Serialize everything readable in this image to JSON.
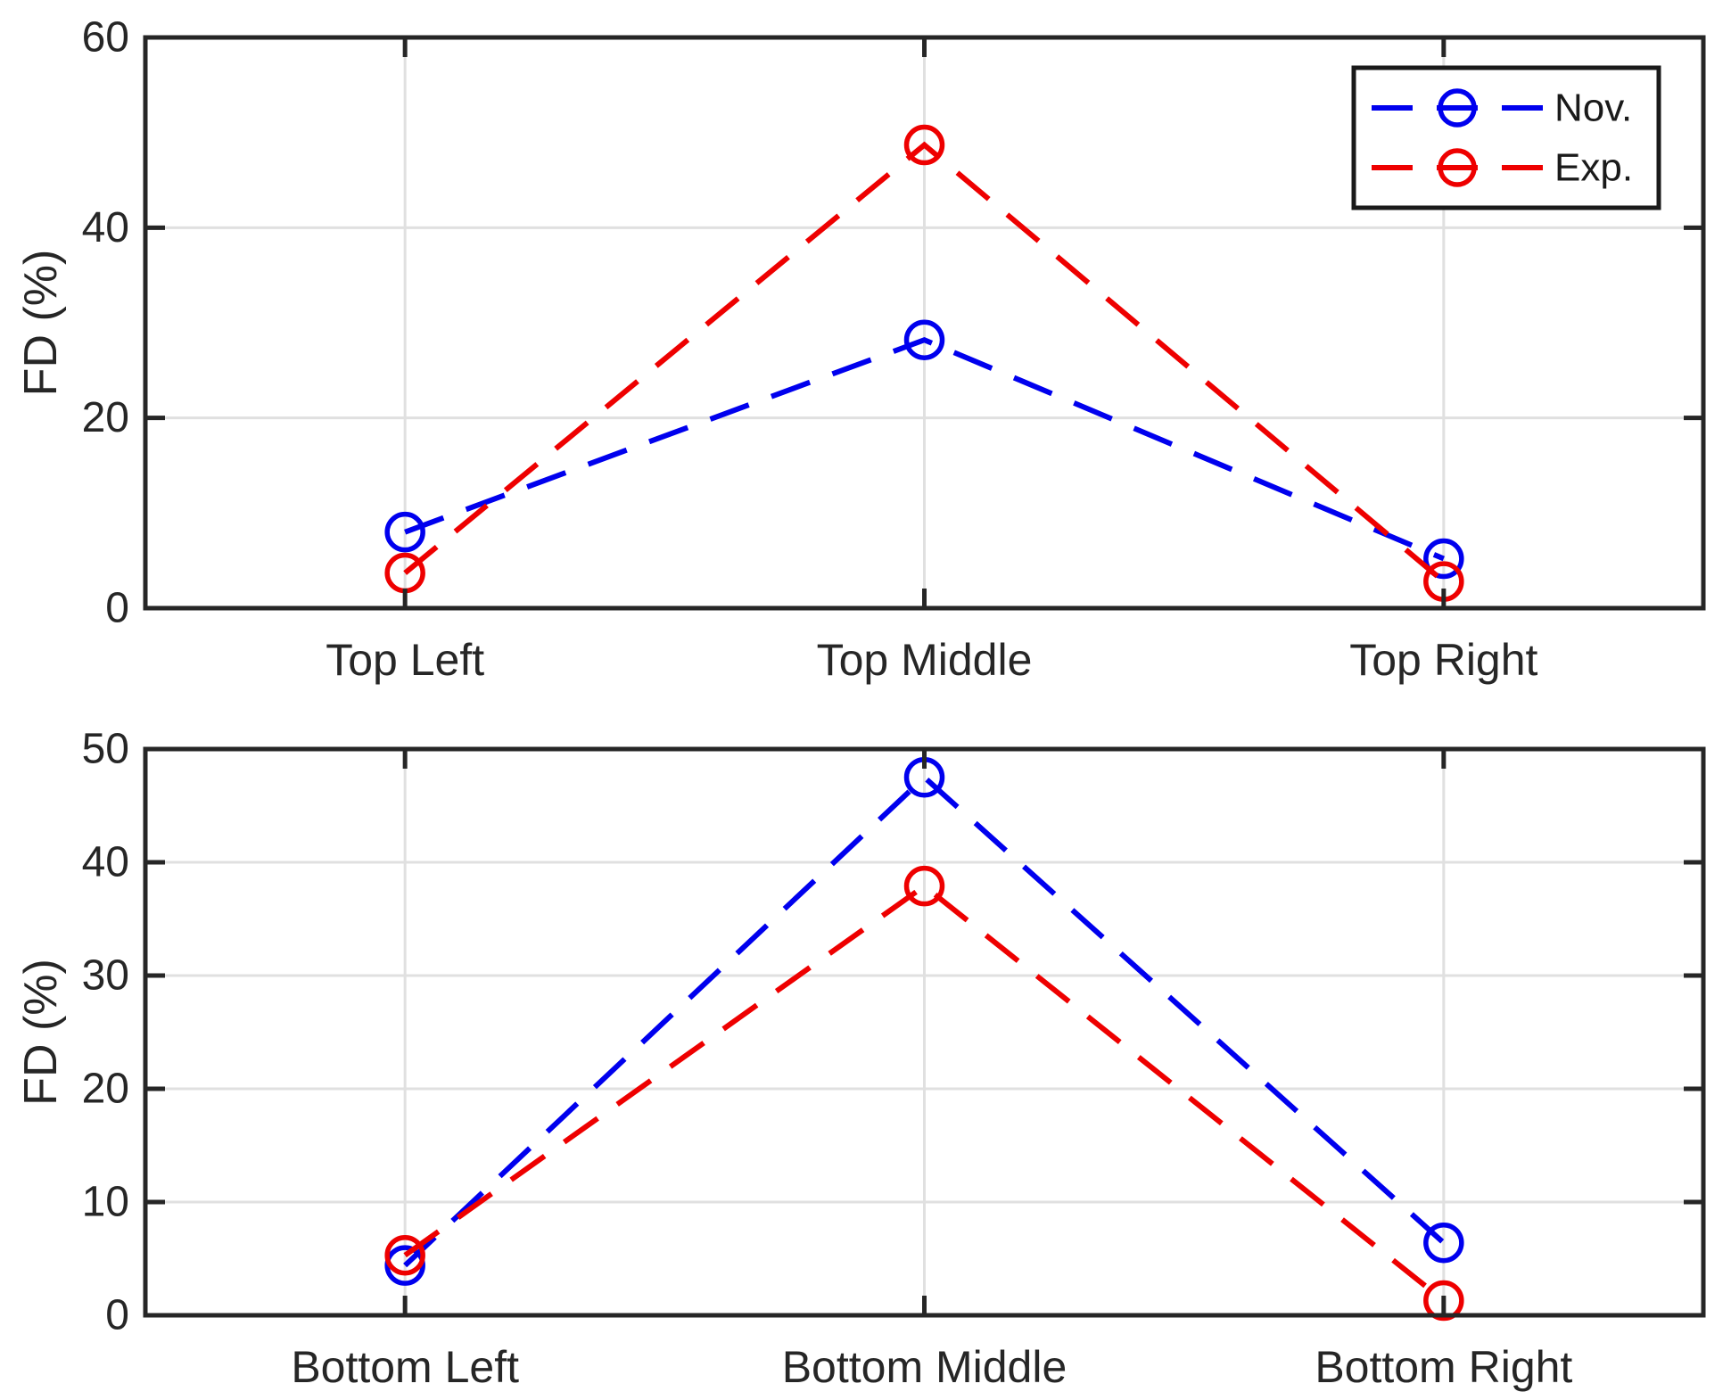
{
  "figure": {
    "background": "#ffffff",
    "axis_color": "#262626",
    "grid_color": "#e0e0e0",
    "text_color": "#262626",
    "legend_border_color": "#1a1a1a",
    "legend_fill": "#ffffff"
  },
  "chart_data": [
    {
      "type": "line",
      "panel": "top",
      "title": "",
      "categories": [
        "Top Left",
        "Top Middle",
        "Top Right"
      ],
      "series": [
        {
          "name": "Nov.",
          "color": "#0000ee",
          "marker": "circle",
          "line_style": "dashed",
          "values": [
            8.0,
            28.2,
            5.2
          ]
        },
        {
          "name": "Exp.",
          "color": "#ee0000",
          "marker": "circle",
          "line_style": "dashed",
          "values": [
            3.7,
            48.7,
            2.8
          ]
        }
      ],
      "xlabel": "",
      "ylabel": "FD (%)",
      "ylim": [
        0,
        60
      ],
      "yticks": [
        0,
        20,
        40,
        60
      ],
      "ytick_labels": [
        "0",
        "20",
        "40",
        "60"
      ],
      "grid": true,
      "legend": {
        "visible": true,
        "position": "top-right",
        "labels": [
          "Nov.",
          "Exp."
        ]
      }
    },
    {
      "type": "line",
      "panel": "bottom",
      "title": "",
      "categories": [
        "Bottom Left",
        "Bottom Middle",
        "Bottom Right"
      ],
      "series": [
        {
          "name": "Nov.",
          "color": "#0000ee",
          "marker": "circle",
          "line_style": "dashed",
          "values": [
            4.4,
            47.5,
            6.4
          ]
        },
        {
          "name": "Exp.",
          "color": "#ee0000",
          "marker": "circle",
          "line_style": "dashed",
          "values": [
            5.3,
            37.9,
            1.3
          ]
        }
      ],
      "xlabel": "",
      "ylabel": "FD (%)",
      "ylim": [
        0,
        50
      ],
      "yticks": [
        0,
        10,
        20,
        30,
        40,
        50
      ],
      "ytick_labels": [
        "0",
        "10",
        "20",
        "30",
        "40",
        "50"
      ],
      "grid": true,
      "legend": {
        "visible": false
      }
    }
  ]
}
